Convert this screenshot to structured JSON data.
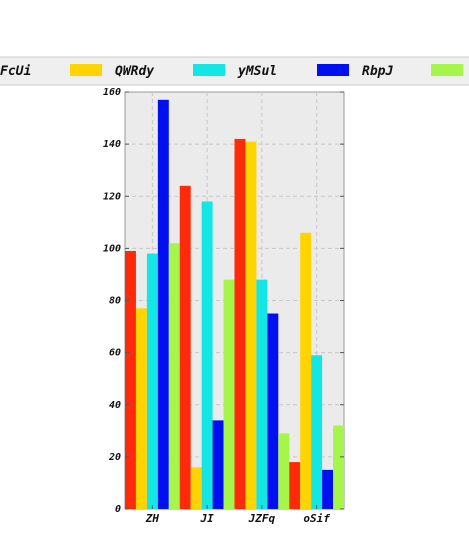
{
  "chart_data": {
    "type": "bar",
    "categories": [
      "ZH",
      "JI",
      "JZFq",
      "oSif"
    ],
    "series": [
      {
        "name": "FcUi",
        "color": "#ff2a0a",
        "values": [
          99,
          124,
          142,
          18
        ]
      },
      {
        "name": "QWRdy",
        "color": "#ffd400",
        "values": [
          77,
          16,
          141,
          106
        ]
      },
      {
        "name": "yMSul",
        "color": "#14e6e6",
        "values": [
          98,
          118,
          88,
          59
        ]
      },
      {
        "name": "RbpJ",
        "color": "#0010ee",
        "values": [
          157,
          34,
          75,
          15
        ]
      },
      {
        "name": "",
        "color": "#a6f54a",
        "values": [
          102,
          88,
          29,
          32
        ]
      }
    ],
    "yticks": [
      0,
      20,
      40,
      60,
      80,
      100,
      120,
      140,
      160
    ],
    "ylim": [
      0,
      160
    ],
    "grid": true,
    "legend_position": "top",
    "title": "",
    "xlabel": "",
    "ylabel": ""
  }
}
